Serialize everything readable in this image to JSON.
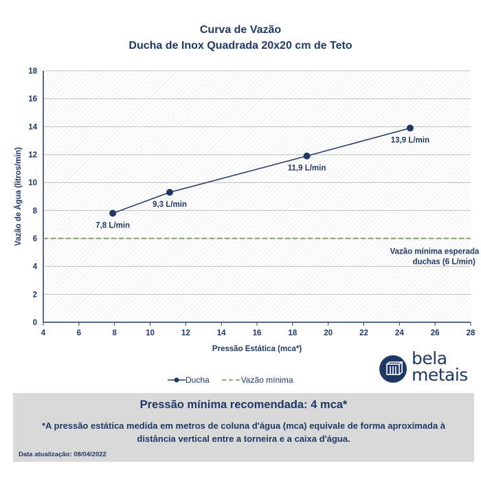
{
  "header": {
    "title": "Curva de Vazão",
    "subtitle": "Ducha de Inox Quadrada 20x20 cm de Teto"
  },
  "chart_data": {
    "type": "line",
    "title": "Curva de Vazão",
    "subtitle": "Ducha de Inox Quadrada 20x20 cm de Teto",
    "xlabel": "Pressão Estática (mca*)",
    "ylabel": "Vazão de Água (litros/min)",
    "xlim": [
      4,
      28
    ],
    "ylim": [
      0,
      18
    ],
    "x_ticks": [
      "4",
      "6",
      "8",
      "10",
      "12",
      "14",
      "16",
      "18",
      "20",
      "22",
      "24",
      "26",
      "28"
    ],
    "y_ticks": [
      "0",
      "2",
      "4",
      "6",
      "8",
      "10",
      "12",
      "14",
      "16",
      "18"
    ],
    "grid": true,
    "legend_position": "bottom",
    "series": [
      {
        "name": "Ducha",
        "color": "#1f3864",
        "x": [
          7.9,
          11.1,
          18.8,
          24.6
        ],
        "y": [
          7.8,
          9.3,
          11.9,
          13.9
        ],
        "labels": [
          "7,8 L/min",
          "9,3 L/min",
          "11,9 L/min",
          "13,9 L/min"
        ]
      },
      {
        "name": "Vazão mínima",
        "color": "#8faa7a",
        "style": "dashed",
        "x": [
          4,
          28
        ],
        "y": [
          6,
          6
        ]
      }
    ],
    "annotations": [
      {
        "text_lines": [
          "Vazão mínima esperada para",
          "duchas (6 L/min)"
        ],
        "x": 26.5,
        "y": 5.1
      }
    ]
  },
  "legend": {
    "items": [
      {
        "label": "Ducha",
        "marker": "line-dot",
        "color": "#1f3864"
      },
      {
        "label": "Vazão mínima",
        "marker": "dash",
        "color": "#8faa7a"
      }
    ]
  },
  "brand": {
    "logo_text_line1": "bela",
    "logo_text_line2": "metais",
    "icon": "bela-metais-logo-icon"
  },
  "footer": {
    "title": "Pressão mínima recomendada: 4 mca*",
    "note": "*A pressão estática medida em metros de coluna d'água (mca) equivale de forma aproximada à distância vertical entre a torneira e a caixa d'água.",
    "date": "Data atualização:  08/04/2022"
  }
}
